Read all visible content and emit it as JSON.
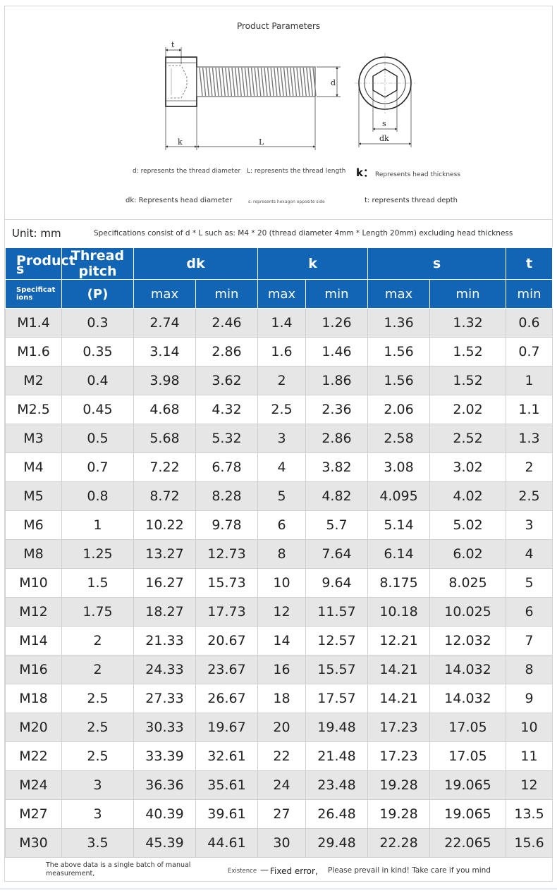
{
  "diagram": {
    "title": "Product Parameters",
    "dim_labels": {
      "t": "t",
      "d": "d",
      "k": "k",
      "L": "L",
      "s": "s",
      "dk": "dk"
    },
    "legend": {
      "d": "d: represents the thread diameter",
      "L": "L: represents the thread length",
      "k_key": "k：",
      "k_text": "Represents head thickness",
      "dk": "dk: Represents head diameter",
      "s": "s: represents hexagon opposite side",
      "t": "t: represents thread depth"
    }
  },
  "unit": {
    "label": "Unit: mm",
    "description": "Specifications consist of d * L such as: M4 * 20 (thread diameter 4mm * Length 20mm) excluding head thickness"
  },
  "table": {
    "header": {
      "product_top": "Product s",
      "product_bottom": "Specificat ions",
      "pitch_top": "Thread pitch",
      "pitch_bottom": "(P)",
      "dk": "dk",
      "k": "k",
      "s": "s",
      "t": "t",
      "max": "max",
      "min": "min"
    },
    "rows": [
      [
        "M1.4",
        "0.3",
        "2.74",
        "2.46",
        "1.4",
        "1.26",
        "1.36",
        "1.32",
        "0.6"
      ],
      [
        "M1.6",
        "0.35",
        "3.14",
        "2.86",
        "1.6",
        "1.46",
        "1.56",
        "1.52",
        "0.7"
      ],
      [
        "M2",
        "0.4",
        "3.98",
        "3.62",
        "2",
        "1.86",
        "1.56",
        "1.52",
        "1"
      ],
      [
        "M2.5",
        "0.45",
        "4.68",
        "4.32",
        "2.5",
        "2.36",
        "2.06",
        "2.02",
        "1.1"
      ],
      [
        "M3",
        "0.5",
        "5.68",
        "5.32",
        "3",
        "2.86",
        "2.58",
        "2.52",
        "1.3"
      ],
      [
        "M4",
        "0.7",
        "7.22",
        "6.78",
        "4",
        "3.82",
        "3.08",
        "3.02",
        "2"
      ],
      [
        "M5",
        "0.8",
        "8.72",
        "8.28",
        "5",
        "4.82",
        "4.095",
        "4.02",
        "2.5"
      ],
      [
        "M6",
        "1",
        "10.22",
        "9.78",
        "6",
        "5.7",
        "5.14",
        "5.02",
        "3"
      ],
      [
        "M8",
        "1.25",
        "13.27",
        "12.73",
        "8",
        "7.64",
        "6.14",
        "6.02",
        "4"
      ],
      [
        "M10",
        "1.5",
        "16.27",
        "15.73",
        "10",
        "9.64",
        "8.175",
        "8.025",
        "5"
      ],
      [
        "M12",
        "1.75",
        "18.27",
        "17.73",
        "12",
        "11.57",
        "10.18",
        "10.025",
        "6"
      ],
      [
        "M14",
        "2",
        "21.33",
        "20.67",
        "14",
        "12.57",
        "12.21",
        "12.032",
        "7"
      ],
      [
        "M16",
        "2",
        "24.33",
        "23.67",
        "16",
        "15.57",
        "14.21",
        "14.032",
        "8"
      ],
      [
        "M18",
        "2.5",
        "27.33",
        "26.67",
        "18",
        "17.57",
        "14.21",
        "14.032",
        "9"
      ],
      [
        "M20",
        "2.5",
        "30.33",
        "19.67",
        "20",
        "19.48",
        "17.23",
        "17.05",
        "10"
      ],
      [
        "M22",
        "2.5",
        "33.39",
        "32.61",
        "22",
        "21.48",
        "17.23",
        "17.05",
        "11"
      ],
      [
        "M24",
        "3",
        "36.36",
        "35.61",
        "24",
        "23.48",
        "19.28",
        "19.065",
        "12"
      ],
      [
        "M27",
        "3",
        "40.39",
        "39.61",
        "27",
        "26.48",
        "19.28",
        "19.065",
        "13.5"
      ],
      [
        "M30",
        "3.5",
        "45.39",
        "44.61",
        "30",
        "29.48",
        "22.28",
        "22.065",
        "15.6"
      ]
    ]
  },
  "footer": {
    "left": "The above data is a single batch of manual measurement,",
    "mid_small": "Existence",
    "mid_dash": "—",
    "mid_big": "Fixed error,",
    "right": "Please prevail in kind! Take care if you mind"
  },
  "colors": {
    "header_blue": "#1264b4",
    "row_gray": "#e6e6e6"
  }
}
